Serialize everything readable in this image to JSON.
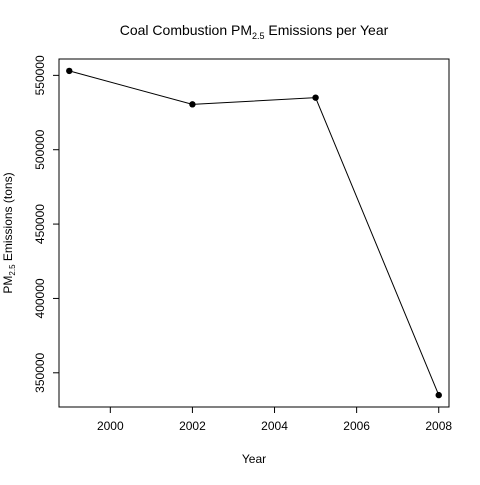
{
  "chart_data": {
    "type": "line",
    "title": {
      "pre": "Coal Combustion PM",
      "sub": "2.5",
      "post": " Emissions per Year"
    },
    "xlabel": "Year",
    "ylabel": {
      "pre": "PM",
      "sub": "2.5",
      "post": " Emissions (tons)"
    },
    "xlim": [
      1998.75,
      2008.25
    ],
    "ylim": [
      327000,
      561000
    ],
    "xticks": [
      2000,
      2002,
      2004,
      2006,
      2008
    ],
    "yticks": [
      350000,
      400000,
      450000,
      500000,
      550000
    ],
    "x": [
      1999,
      2002,
      2005,
      2008
    ],
    "y": [
      553000,
      530500,
      535000,
      335000
    ],
    "line_color": "#000000",
    "point_color": "#000000",
    "grid": false,
    "legend": "none"
  }
}
